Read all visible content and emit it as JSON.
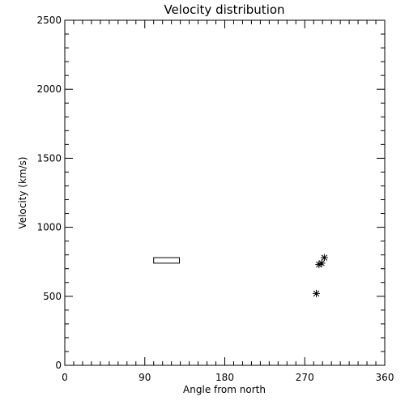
{
  "chart_data": {
    "type": "scatter",
    "title": "Velocity distribution",
    "xlabel": "Angle from north",
    "ylabel": "Velocity (km/s)",
    "xlim": [
      0,
      360
    ],
    "ylim": [
      0,
      2500
    ],
    "x_ticks": [
      0,
      90,
      180,
      270,
      360
    ],
    "y_ticks": [
      0,
      500,
      1000,
      1500,
      2000,
      2500
    ],
    "x_minor_step": 10,
    "y_minor_step": 100,
    "grid": false,
    "legend": "none",
    "marker": "asterisk",
    "points": [
      {
        "x": 292,
        "y": 780
      },
      {
        "x": 289,
        "y": 740
      },
      {
        "x": 286,
        "y": 730
      },
      {
        "x": 283,
        "y": 520
      }
    ],
    "annotations": [
      {
        "shape": "rectangle",
        "x0": 100,
        "x1": 129,
        "y0": 740,
        "y1": 780
      }
    ]
  }
}
